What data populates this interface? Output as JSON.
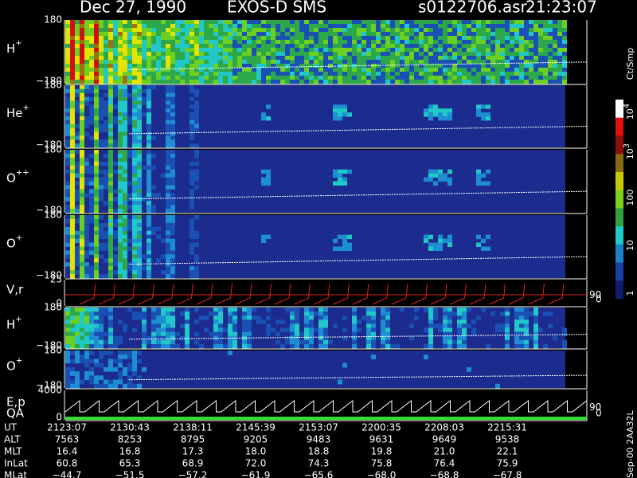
{
  "header": {
    "date": "Dec 27, 1990",
    "instrument": "EXOS-D SMS",
    "file": "s0122706.asr",
    "time": "21:23:07"
  },
  "panels": [
    {
      "label": "H",
      "sup": "+",
      "top": "180",
      "bottom": "−180"
    },
    {
      "label": "He",
      "sup": "+",
      "top": "180",
      "bottom": "−180"
    },
    {
      "label": "O",
      "sup": "++",
      "top": "180",
      "bottom": "−180"
    },
    {
      "label": "O",
      "sup": "+",
      "top": "180",
      "bottom": "−180"
    },
    {
      "label": "V,r",
      "top": "25",
      "bottom": "0",
      "right_top": "90",
      "right_bottom": "0"
    },
    {
      "label": "H",
      "sup": "+",
      "top": "180",
      "bottom": "−180"
    },
    {
      "label": "O",
      "sup": "+",
      "top": "180",
      "bottom": "−180"
    },
    {
      "label": "E,p",
      "label2": "QA",
      "top": "4000",
      "bottom": "0",
      "right_top": "90",
      "right_bottom": "0"
    }
  ],
  "colorbar": {
    "unit": "Ct/Smp",
    "labels": [
      {
        "base": "10",
        "exp": "4"
      },
      {
        "base": "10",
        "exp": "3"
      },
      {
        "base": "100"
      },
      {
        "base": "10"
      },
      {
        "base": "1"
      }
    ]
  },
  "footer": {
    "rows": [
      {
        "name": "UT",
        "values": [
          "2123:07",
          "2130:43",
          "2138:11",
          "2145:39",
          "2153:07",
          "2200:35",
          "2208:03",
          "2215:31"
        ]
      },
      {
        "name": "ALT",
        "values": [
          "7563",
          "8253",
          "8795",
          "9205",
          "9483",
          "9631",
          "9649",
          "9538"
        ]
      },
      {
        "name": "MLT",
        "values": [
          "16.4",
          "16.8",
          "17.3",
          "18.0",
          "18.8",
          "19.8",
          "21.0",
          "22.1"
        ]
      },
      {
        "name": "InLat",
        "values": [
          "60.8",
          "65.3",
          "68.9",
          "72.0",
          "74.3",
          "75.8",
          "76.4",
          "75.9"
        ]
      },
      {
        "name": "MLat",
        "values": [
          "−44.7",
          "−51.5",
          "−57.2",
          "−61.9",
          "−65.6",
          "−68.0",
          "−68.8",
          "−67.8"
        ]
      }
    ],
    "stamp": "Sep-00 2AA32L"
  }
}
